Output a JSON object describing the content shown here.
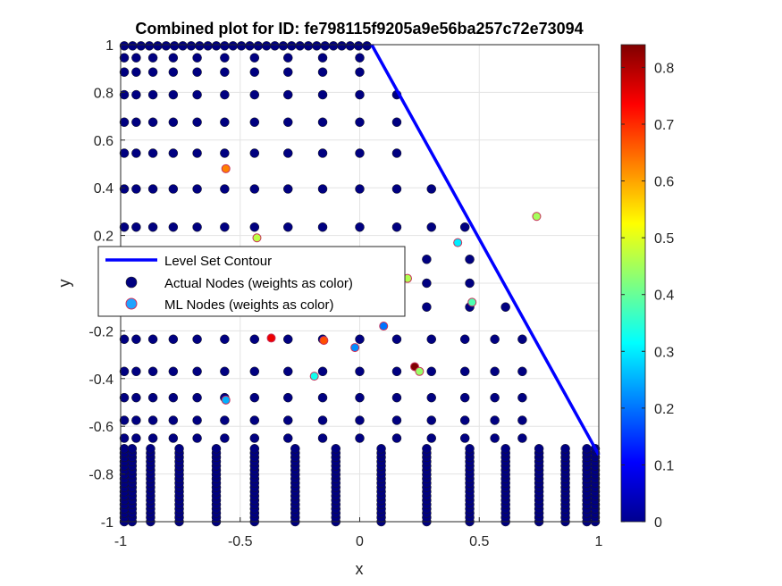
{
  "chart_data": {
    "type": "scatter",
    "title": "Combined plot for ID: fe798115f9205a9e56ba257c72e73094",
    "xlabel": "x",
    "ylabel": "y",
    "xlim": [
      -1,
      1
    ],
    "ylim": [
      -1,
      1
    ],
    "xticks": [
      -1,
      -0.5,
      0,
      0.5,
      1
    ],
    "xtick_labels": [
      "-1",
      "-0.5",
      "0",
      "0.5",
      "1"
    ],
    "yticks": [
      -1,
      -0.8,
      -0.6,
      -0.4,
      -0.2,
      0,
      0.2,
      0.4,
      0.6,
      0.8,
      1
    ],
    "ytick_labels": [
      "-1",
      "-0.8",
      "-0.6",
      "-0.4",
      "-0.2",
      "0",
      "0.2",
      "0.4",
      "0.6",
      "0.8",
      "1"
    ],
    "grid": true,
    "legend": {
      "placement": "middle-left",
      "entries": [
        "Level Set Contour",
        "Actual Nodes (weights as color)",
        "ML Nodes (weights as color)"
      ]
    },
    "colorbar": {
      "colormap": "jet",
      "range": [
        0,
        0.84
      ],
      "ticks": [
        0,
        0.1,
        0.2,
        0.3,
        0.4,
        0.5,
        0.6,
        0.7,
        0.8
      ],
      "tick_labels": [
        "0",
        "0.1",
        "0.2",
        "0.3",
        "0.4",
        "0.5",
        "0.6",
        "0.7",
        "0.8"
      ]
    },
    "level_set_contour": {
      "name": "Level Set Contour",
      "color": "#0000ff",
      "x": [
        0.05,
        1.0
      ],
      "y": [
        1.0,
        -0.72
      ]
    },
    "actual_nodes": {
      "name": "Actual Nodes (weights as color)",
      "weight": 0,
      "line_a_x": [
        -0.985,
        -0.952,
        -0.875,
        -0.755,
        -0.6,
        -0.44,
        -0.27,
        -0.1,
        0.09,
        0.28,
        0.46,
        0.61,
        0.75,
        0.86,
        0.95,
        0.985
      ],
      "line_b_x": [
        -0.985,
        -0.935,
        -0.865,
        -0.78,
        -0.68,
        -0.565,
        -0.44,
        -0.3,
        -0.155,
        0.0,
        0.155,
        0.3,
        0.44,
        0.565,
        0.68
      ],
      "line_b_rows": [
        0.945,
        0.885,
        0.79,
        0.675,
        0.545,
        0.395,
        0.235,
        -0.235,
        -0.37,
        -0.48,
        -0.575
      ],
      "line_a_rows": [
        0.0,
        -0.105
      ],
      "bottom_band_y_min": -1.0,
      "bottom_band_y_max": -0.69
    },
    "ml_nodes": {
      "name": "ML Nodes (weights as color)",
      "points": [
        {
          "x": -0.56,
          "y": 0.48,
          "w": 0.63
        },
        {
          "x": -0.43,
          "y": 0.19,
          "w": 0.47
        },
        {
          "x": 0.74,
          "y": 0.28,
          "w": 0.45
        },
        {
          "x": 0.41,
          "y": 0.17,
          "w": 0.3
        },
        {
          "x": 0.2,
          "y": 0.02,
          "w": 0.46
        },
        {
          "x": 0.47,
          "y": -0.08,
          "w": 0.38
        },
        {
          "x": -0.37,
          "y": -0.23,
          "w": 0.75
        },
        {
          "x": -0.15,
          "y": -0.24,
          "w": 0.67
        },
        {
          "x": -0.02,
          "y": -0.27,
          "w": 0.22
        },
        {
          "x": 0.1,
          "y": -0.18,
          "w": 0.2
        },
        {
          "x": 0.23,
          "y": -0.35,
          "w": 0.84
        },
        {
          "x": 0.25,
          "y": -0.37,
          "w": 0.44
        },
        {
          "x": -0.19,
          "y": -0.39,
          "w": 0.33
        },
        {
          "x": -0.56,
          "y": -0.49,
          "w": 0.25
        }
      ]
    }
  }
}
